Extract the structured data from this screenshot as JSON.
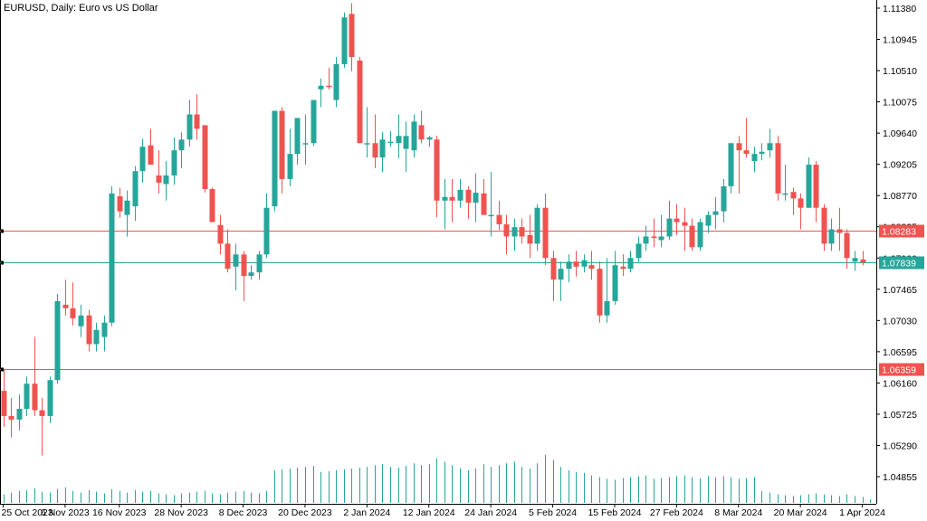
{
  "title": "EURUSD, Daily:  Euro vs US Dollar",
  "colors": {
    "up": "#26a69a",
    "down": "#ef5350",
    "volume": "#26a69a",
    "axis": "#000000",
    "hline_red": "#ef5350",
    "hline_teal": "#26a69a",
    "background": "#ffffff"
  },
  "chart_data": {
    "type": "candlestick",
    "title": "EURUSD, Daily:  Euro vs US Dollar",
    "ylim": [
      1.0445,
      1.1145
    ],
    "y_ticks": [
      "1.11380",
      "1.10945",
      "1.10510",
      "1.10075",
      "1.09640",
      "1.09205",
      "1.08770",
      "1.08335",
      "1.07900",
      "1.07465",
      "1.07030",
      "1.06595",
      "1.06160",
      "1.05725",
      "1.05290",
      "1.04855"
    ],
    "x_ticks": [
      "25 Oct 2023",
      "6 Nov 2023",
      "16 Nov 2023",
      "28 Nov 2023",
      "8 Dec 2023",
      "20 Dec 2023",
      "2 Jan 2024",
      "12 Jan 2024",
      "24 Jan 2024",
      "5 Feb 2024",
      "15 Feb 2024",
      "27 Feb 2024",
      "8 Mar 2024",
      "20 Mar 2024",
      "1 Apr 2024"
    ],
    "x_tick_index": [
      0,
      8,
      15,
      23,
      31,
      39,
      47,
      55,
      63,
      71,
      79,
      87,
      95,
      103,
      111
    ],
    "hlines": [
      {
        "label": "1.08283",
        "value": 1.08283,
        "color": "red"
      },
      {
        "label": "1.07839",
        "value": 1.07839,
        "color": "teal"
      },
      {
        "label": "1.06359",
        "value": 1.06359,
        "color": "red"
      }
    ],
    "candles": [
      [
        1.0605,
        1.0635,
        1.0555,
        1.057
      ],
      [
        1.057,
        1.0595,
        1.054,
        1.0565
      ],
      [
        1.0565,
        1.06,
        1.055,
        1.058
      ],
      [
        1.058,
        1.0625,
        1.057,
        1.0615
      ],
      [
        1.0615,
        1.068,
        1.057,
        1.0578
      ],
      [
        1.0578,
        1.0595,
        1.0515,
        1.057
      ],
      [
        1.057,
        1.0625,
        1.056,
        1.062
      ],
      [
        1.062,
        1.074,
        1.0615,
        1.073
      ],
      [
        1.0725,
        1.076,
        1.071,
        1.072
      ],
      [
        1.072,
        1.0756,
        1.0696,
        1.0706
      ],
      [
        1.0695,
        1.0725,
        1.068,
        1.071
      ],
      [
        1.071,
        1.0718,
        1.066,
        1.067
      ],
      [
        1.067,
        1.07,
        1.066,
        1.069
      ],
      [
        1.068,
        1.071,
        1.066,
        1.07
      ],
      [
        1.07,
        1.089,
        1.0695,
        1.088
      ],
      [
        1.0876,
        1.0888,
        1.0846,
        1.0855
      ],
      [
        1.085,
        1.0884,
        1.082,
        1.087
      ],
      [
        1.0862,
        1.0918,
        1.0842,
        1.0911
      ],
      [
        1.0911,
        1.0956,
        1.0895,
        1.0945
      ],
      [
        1.0947,
        1.097,
        1.092,
        1.092
      ],
      [
        1.0905,
        1.094,
        1.088,
        1.0895
      ],
      [
        1.0893,
        1.0925,
        1.087,
        1.0905
      ],
      [
        1.0905,
        1.0958,
        1.0892,
        1.094
      ],
      [
        1.094,
        1.0965,
        1.0915,
        1.0955
      ],
      [
        1.0955,
        1.101,
        1.0945,
        1.099
      ],
      [
        1.099,
        1.1018,
        1.0955,
        1.097
      ],
      [
        1.0975,
        1.0975,
        1.0881,
        1.0886
      ],
      [
        1.0886,
        1.0888,
        1.0841,
        1.084
      ],
      [
        1.0836,
        1.085,
        1.0795,
        1.081
      ],
      [
        1.081,
        1.083,
        1.077,
        1.0775
      ],
      [
        1.0778,
        1.081,
        1.0745,
        1.0795
      ],
      [
        1.0795,
        1.08,
        1.073,
        1.0765
      ],
      [
        1.0765,
        1.078,
        1.076,
        1.077
      ],
      [
        1.077,
        1.08,
        1.076,
        1.0795
      ],
      [
        1.0795,
        1.088,
        1.079,
        1.086
      ],
      [
        1.0862,
        1.0995,
        1.0855,
        1.0995
      ],
      [
        1.0995,
        1.1,
        1.088,
        1.09
      ],
      [
        1.09,
        1.097,
        1.089,
        1.0935
      ],
      [
        1.0935,
        1.0985,
        1.092,
        1.0985
      ],
      [
        1.095,
        1.099,
        1.092,
        1.095
      ],
      [
        1.095,
        1.101,
        1.0946,
        1.101
      ],
      [
        1.1025,
        1.104,
        1.1,
        1.103
      ],
      [
        1.103,
        1.1055,
        1.1025,
        1.1028
      ],
      [
        1.101,
        1.107,
        1.1,
        1.106
      ],
      [
        1.106,
        1.1132,
        1.1055,
        1.1125
      ],
      [
        1.113,
        1.1145,
        1.105,
        1.107
      ],
      [
        1.1065,
        1.107,
        1.0955,
        1.095
      ],
      [
        1.095,
        1.1,
        1.093,
        1.095
      ],
      [
        1.095,
        1.099,
        1.0915,
        1.093
      ],
      [
        1.093,
        1.0965,
        1.091,
        1.0955
      ],
      [
        1.0952,
        1.0967,
        1.0945,
        1.0952
      ],
      [
        1.095,
        1.099,
        1.0929,
        1.096
      ],
      [
        1.0942,
        1.098,
        1.091,
        1.096
      ],
      [
        1.094,
        1.099,
        1.093,
        1.098
      ],
      [
        1.0975,
        1.0995,
        1.095,
        1.0955
      ],
      [
        1.0955,
        1.096,
        1.0945,
        1.0958
      ],
      [
        1.0955,
        1.096,
        1.0847,
        1.087
      ],
      [
        1.087,
        1.09,
        1.083,
        1.0875
      ],
      [
        1.0875,
        1.09,
        1.084,
        1.087
      ],
      [
        1.087,
        1.09,
        1.086,
        1.0885
      ],
      [
        1.0885,
        1.089,
        1.0845,
        1.0867
      ],
      [
        1.0867,
        1.0908,
        1.084,
        1.0881
      ],
      [
        1.088,
        1.09,
        1.0855,
        1.085
      ],
      [
        1.085,
        1.091,
        1.082,
        1.085
      ],
      [
        1.085,
        1.087,
        1.0829,
        1.0837
      ],
      [
        1.0837,
        1.085,
        1.0795,
        1.082
      ],
      [
        1.082,
        1.0845,
        1.08,
        1.0833
      ],
      [
        1.0833,
        1.0845,
        1.081,
        1.082
      ],
      [
        1.0822,
        1.085,
        1.079,
        1.081
      ],
      [
        1.081,
        1.0865,
        1.08,
        1.086
      ],
      [
        1.086,
        1.088,
        1.078,
        1.079
      ],
      [
        1.079,
        1.08,
        1.073,
        1.076
      ],
      [
        1.076,
        1.0785,
        1.073,
        1.0775
      ],
      [
        1.0775,
        1.0795,
        1.0756,
        1.0785
      ],
      [
        1.0785,
        1.08,
        1.0764,
        1.0778
      ],
      [
        1.0778,
        1.0795,
        1.077,
        1.0787
      ],
      [
        1.078,
        1.08,
        1.076,
        1.0775
      ],
      [
        1.0775,
        1.0785,
        1.07,
        1.071
      ],
      [
        1.071,
        1.079,
        1.07,
        1.073
      ],
      [
        1.073,
        1.08,
        1.0725,
        1.078
      ],
      [
        1.0778,
        1.0795,
        1.0765,
        1.0775
      ],
      [
        1.0775,
        1.08,
        1.077,
        1.079
      ],
      [
        1.079,
        1.082,
        1.0785,
        1.081
      ],
      [
        1.081,
        1.0835,
        1.08,
        1.082
      ],
      [
        1.082,
        1.0845,
        1.0805,
        1.0818
      ],
      [
        1.0815,
        1.085,
        1.0805,
        1.082
      ],
      [
        1.082,
        1.087,
        1.0815,
        1.0845
      ],
      [
        1.0845,
        1.0865,
        1.0822,
        1.084
      ],
      [
        1.084,
        1.086,
        1.08,
        1.0835
      ],
      [
        1.0835,
        1.0845,
        1.08,
        1.0805
      ],
      [
        1.0805,
        1.0845,
        1.08,
        1.084
      ],
      [
        1.0835,
        1.0855,
        1.0825,
        1.085
      ],
      [
        1.085,
        1.0875,
        1.083,
        1.0855
      ],
      [
        1.0855,
        1.09,
        1.084,
        1.089
      ],
      [
        1.089,
        1.0945,
        1.088,
        1.095
      ],
      [
        1.095,
        1.096,
        1.088,
        1.094
      ],
      [
        1.094,
        1.0985,
        1.093,
        1.0935
      ],
      [
        1.0925,
        1.0945,
        1.091,
        1.0935
      ],
      [
        1.0935,
        1.095,
        1.0926,
        1.0938
      ],
      [
        1.094,
        1.097,
        1.093,
        1.095
      ],
      [
        1.095,
        1.096,
        1.087,
        1.088
      ],
      [
        1.088,
        1.092,
        1.087,
        1.088
      ],
      [
        1.0882,
        1.0888,
        1.085,
        1.0873
      ],
      [
        1.0873,
        1.088,
        1.083,
        1.086
      ],
      [
        1.086,
        1.093,
        1.086,
        1.092
      ],
      [
        1.092,
        1.0925,
        1.084,
        1.086
      ],
      [
        1.086,
        1.0865,
        1.08,
        1.081
      ],
      [
        1.081,
        1.0845,
        1.08,
        1.083
      ],
      [
        1.083,
        1.086,
        1.08,
        1.0825
      ],
      [
        1.0825,
        1.083,
        1.0775,
        1.079
      ],
      [
        1.0785,
        1.08,
        1.0772,
        1.079
      ],
      [
        1.0788,
        1.08,
        1.078,
        1.0784
      ]
    ],
    "volume": [
      10,
      12,
      14,
      15,
      17,
      13,
      12,
      16,
      18,
      14,
      12,
      15,
      13,
      11,
      16,
      14,
      12,
      15,
      13,
      14,
      11,
      10,
      9,
      11,
      12,
      13,
      14,
      11,
      10,
      12,
      13,
      14,
      12,
      11,
      14,
      38,
      39,
      40,
      41,
      42,
      43,
      36,
      37,
      38,
      39,
      40,
      41,
      42,
      44,
      45,
      42,
      41,
      43,
      46,
      44,
      45,
      52,
      48,
      44,
      40,
      38,
      40,
      45,
      42,
      44,
      46,
      48,
      42,
      40,
      46,
      56,
      50,
      42,
      38,
      36,
      35,
      32,
      30,
      28,
      27,
      29,
      30,
      31,
      32,
      28,
      29,
      30,
      31,
      32,
      30,
      29,
      31,
      30,
      31,
      30,
      28,
      29,
      30,
      14,
      12,
      10,
      9,
      8,
      9,
      10,
      11,
      10,
      9,
      8,
      10,
      8,
      7,
      4
    ]
  }
}
